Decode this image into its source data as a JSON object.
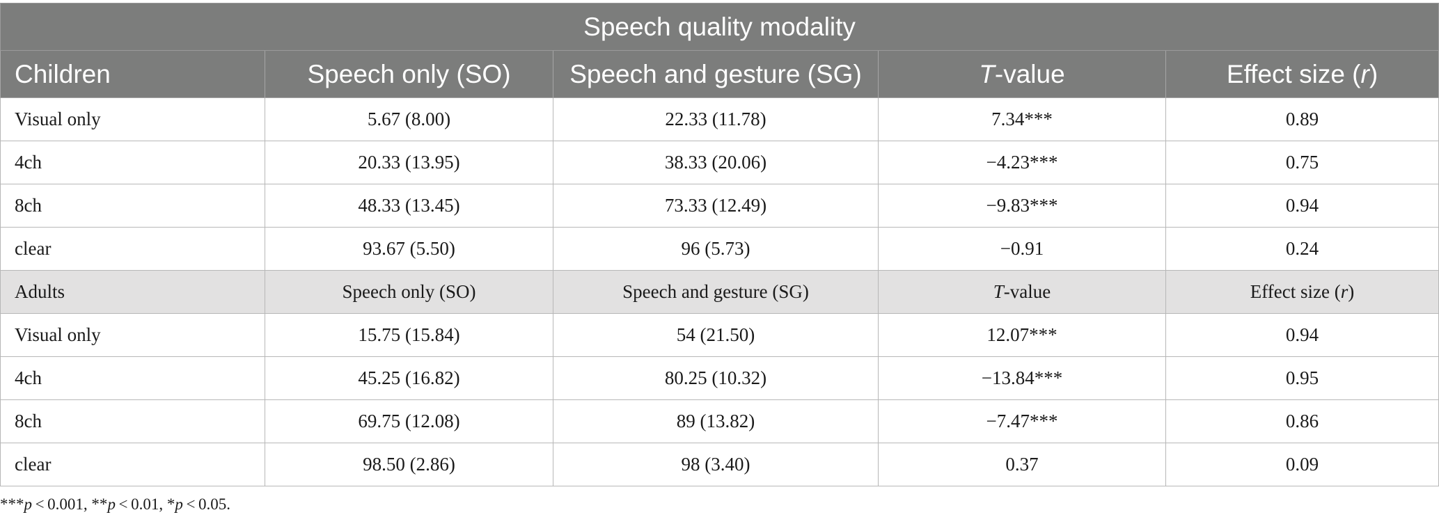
{
  "table": {
    "title": "Speech quality modality",
    "children_header": {
      "group": "Children",
      "so": "Speech only (SO)",
      "sg": "Speech and gesture (SG)",
      "t_italic": "T",
      "t_rest": "-value",
      "r_pre": "Effect size (",
      "r_italic": "r",
      "r_post": ")"
    },
    "children_rows": [
      {
        "condition": "Visual only",
        "so": "5.67 (8.00)",
        "sg": "22.33 (11.78)",
        "t": "7.34***",
        "r": "0.89"
      },
      {
        "condition": "4ch",
        "so": "20.33 (13.95)",
        "sg": "38.33 (20.06)",
        "t": "−4.23***",
        "r": "0.75"
      },
      {
        "condition": "8ch",
        "so": "48.33 (13.45)",
        "sg": "73.33 (12.49)",
        "t": "−9.83***",
        "r": "0.94"
      },
      {
        "condition": "clear",
        "so": "93.67 (5.50)",
        "sg": "96 (5.73)",
        "t": "−0.91",
        "r": "0.24"
      }
    ],
    "adults_header": {
      "group": "Adults",
      "so": "Speech only (SO)",
      "sg": "Speech and gesture (SG)",
      "t_italic": "T",
      "t_rest": "-value",
      "r_pre": "Effect size (",
      "r_italic": "r",
      "r_post": ")"
    },
    "adults_rows": [
      {
        "condition": "Visual only",
        "so": "15.75 (15.84)",
        "sg": "54 (21.50)",
        "t": "12.07***",
        "r": "0.94"
      },
      {
        "condition": "4ch",
        "so": "45.25 (16.82)",
        "sg": "80.25 (10.32)",
        "t": "−13.84***",
        "r": "0.95"
      },
      {
        "condition": "8ch",
        "so": "69.75 (12.08)",
        "sg": "89 (13.82)",
        "t": "−7.47***",
        "r": "0.86"
      },
      {
        "condition": "clear",
        "so": "98.50 (2.86)",
        "sg": "98 (3.40)",
        "t": "0.37",
        "r": "0.09"
      }
    ]
  },
  "footnote": {
    "s1": "***",
    "p1": "p",
    "t1": " < 0.001, **",
    "p2": "p",
    "t2": " < 0.01, *",
    "p3": "p",
    "t3": " < 0.05."
  }
}
